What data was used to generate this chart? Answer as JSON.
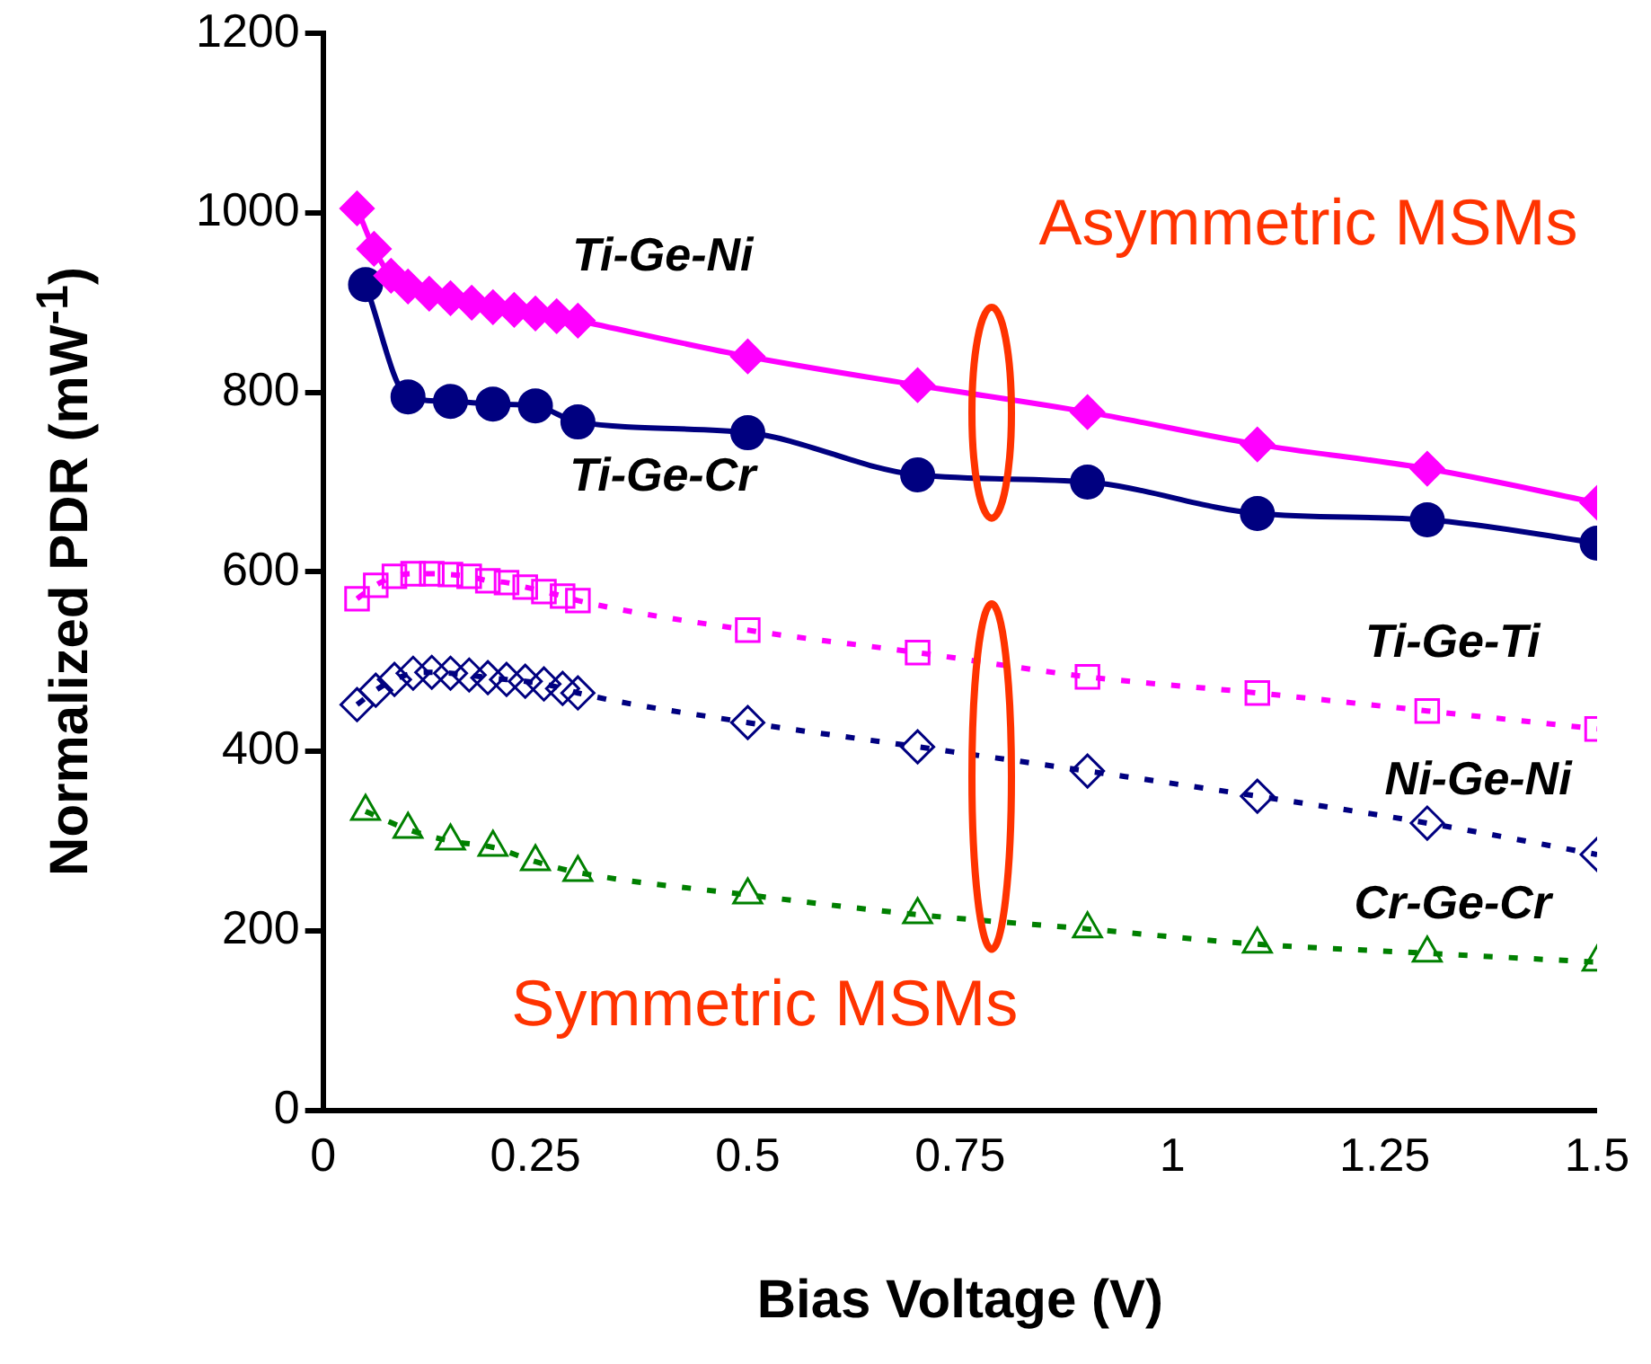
{
  "chart_data": {
    "type": "line",
    "xlabel": "Bias Voltage (V)",
    "ylabel": "Normalized PDR (mW$^{-1}$)",
    "xlim": [
      0,
      1.5
    ],
    "xticks": [
      0,
      0.25,
      0.5,
      0.75,
      1,
      1.25,
      1.5
    ],
    "ylim": [
      0,
      1200
    ],
    "yticks": [
      0,
      200,
      400,
      600,
      800,
      1000,
      1200
    ],
    "grid": false,
    "legend": false,
    "series": [
      {
        "name": "Ti-Ge-Ni",
        "color": "#ff00ff",
        "marker": "diamond",
        "line_style": "solid",
        "x": [
          0.04,
          0.06,
          0.08,
          0.1,
          0.125,
          0.15,
          0.175,
          0.2,
          0.225,
          0.25,
          0.275,
          0.3,
          0.5,
          0.7,
          0.9,
          1.1,
          1.3,
          1.5
        ],
        "values": [
          1005,
          960,
          930,
          918,
          910,
          905,
          900,
          895,
          892,
          888,
          885,
          880,
          840,
          808,
          778,
          742,
          715,
          677
        ]
      },
      {
        "name": "Ti-Ge-Cr",
        "color": "#000080",
        "marker": "circle",
        "line_style": "solid",
        "x": [
          0.05,
          0.1,
          0.15,
          0.2,
          0.25,
          0.3,
          0.5,
          0.7,
          0.9,
          1.1,
          1.3,
          1.5
        ],
        "values": [
          920,
          795,
          790,
          787,
          785,
          767,
          755,
          708,
          700,
          665,
          658,
          632
        ]
      },
      {
        "name": "Ti-Ge-Ti",
        "color": "#ff00ff",
        "marker": "square",
        "line_style": "dotted",
        "x": [
          0.04,
          0.062,
          0.084,
          0.106,
          0.128,
          0.15,
          0.172,
          0.194,
          0.216,
          0.238,
          0.26,
          0.282,
          0.3,
          0.5,
          0.7,
          0.9,
          1.1,
          1.3,
          1.5
        ],
        "values": [
          570,
          585,
          595,
          598,
          598,
          597,
          595,
          590,
          588,
          583,
          578,
          573,
          568,
          535,
          510,
          483,
          465,
          445,
          425
        ]
      },
      {
        "name": "Ni-Ge-Ni",
        "color": "#000080",
        "marker": "diamond",
        "line_style": "dotted",
        "x": [
          0.04,
          0.062,
          0.084,
          0.106,
          0.128,
          0.15,
          0.172,
          0.194,
          0.216,
          0.238,
          0.26,
          0.282,
          0.3,
          0.5,
          0.7,
          0.9,
          1.1,
          1.3,
          1.5
        ],
        "values": [
          452,
          468,
          480,
          487,
          488,
          487,
          485,
          482,
          480,
          478,
          475,
          470,
          465,
          432,
          405,
          378,
          350,
          320,
          285
        ]
      },
      {
        "name": "Cr-Ge-Cr",
        "color": "#008000",
        "marker": "triangle",
        "line_style": "dotted",
        "x": [
          0.05,
          0.1,
          0.15,
          0.2,
          0.25,
          0.3,
          0.5,
          0.7,
          0.9,
          1.1,
          1.3,
          1.5
        ],
        "values": [
          333,
          313,
          300,
          293,
          277,
          265,
          240,
          218,
          202,
          185,
          175,
          165
        ]
      }
    ],
    "annotations": [
      "Asymmetric MSMs",
      "Symmetric MSMs"
    ]
  }
}
